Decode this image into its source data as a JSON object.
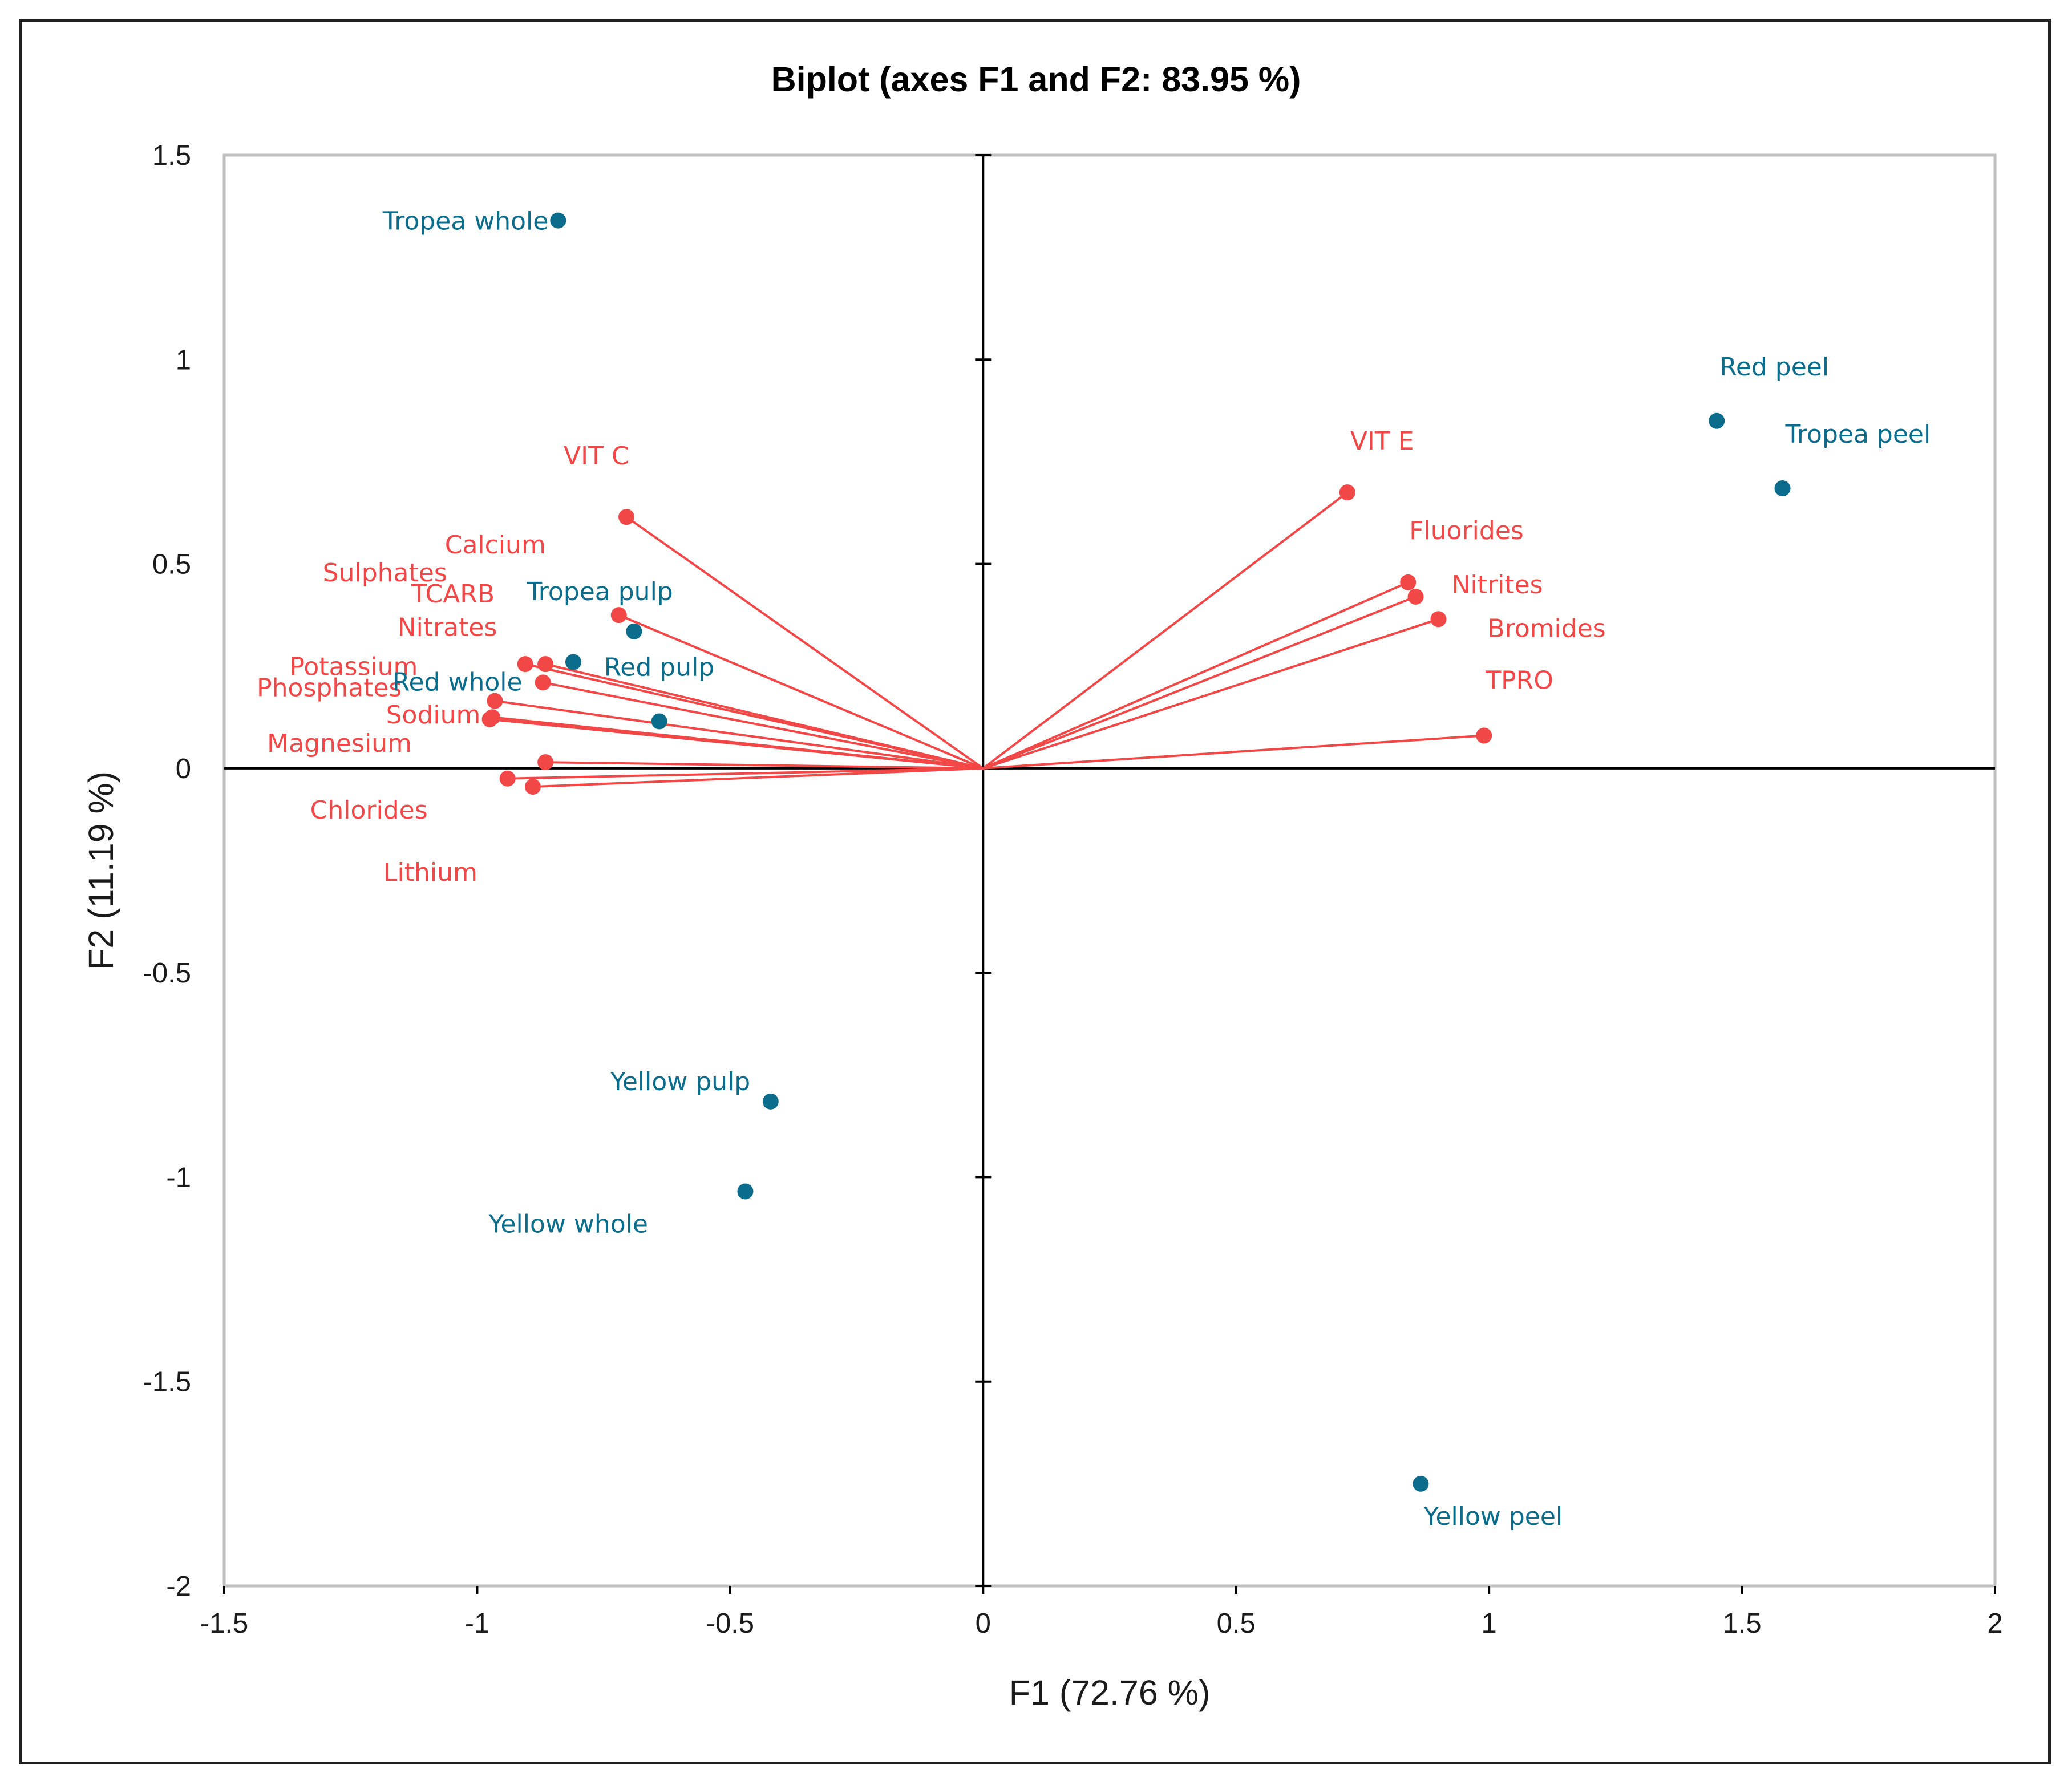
{
  "chart_data": {
    "type": "scatter",
    "title": "Biplot (axes F1 and F2: 83.95 %)",
    "xlabel": "F1 (72.76 %)",
    "ylabel": "F2 (11.19 %)",
    "xlim": [
      -1.5,
      2
    ],
    "ylim": [
      -2,
      1.5
    ],
    "xticks": [
      "-1.5",
      "-1",
      "-0.5",
      "0",
      "0.5",
      "1",
      "1.5",
      "2"
    ],
    "yticks": [
      "-2",
      "-1.5",
      "-1",
      "-0.5",
      "0",
      "0.5",
      "1",
      "1.5"
    ],
    "colors": {
      "variables": "#f24747",
      "observations": "#0b6c8c"
    },
    "variables": [
      {
        "name": "VIT C",
        "x": -0.705,
        "y": 0.615
      },
      {
        "name": "Calcium",
        "x": -0.72,
        "y": 0.375
      },
      {
        "name": "Sulphates",
        "x": -0.905,
        "y": 0.255
      },
      {
        "name": "TCARB",
        "x": -0.865,
        "y": 0.255
      },
      {
        "name": "Nitrates",
        "x": -0.87,
        "y": 0.21
      },
      {
        "name": "Potassium",
        "x": -0.965,
        "y": 0.165
      },
      {
        "name": "Phosphates",
        "x": -0.97,
        "y": 0.125
      },
      {
        "name": "Sodium",
        "x": -0.975,
        "y": 0.12
      },
      {
        "name": "Magnesium",
        "x": -0.865,
        "y": 0.015
      },
      {
        "name": "Chlorides",
        "x": -0.94,
        "y": -0.025
      },
      {
        "name": "Lithium",
        "x": -0.89,
        "y": -0.045
      },
      {
        "name": "VIT E",
        "x": 0.72,
        "y": 0.675
      },
      {
        "name": "Fluorides",
        "x": 0.84,
        "y": 0.455
      },
      {
        "name": "Nitrites",
        "x": 0.855,
        "y": 0.42
      },
      {
        "name": "Bromides",
        "x": 0.9,
        "y": 0.365
      },
      {
        "name": "TPRO",
        "x": 0.99,
        "y": 0.08
      }
    ],
    "observations": [
      {
        "name": "Tropea whole",
        "x": -0.84,
        "y": 1.34
      },
      {
        "name": "Tropea pulp",
        "x": -0.69,
        "y": 0.335
      },
      {
        "name": "Red pulp",
        "x": -0.64,
        "y": 0.115
      },
      {
        "name": "Red whole",
        "x": -0.81,
        "y": 0.26
      },
      {
        "name": "Red peel",
        "x": 1.45,
        "y": 0.85
      },
      {
        "name": "Tropea peel",
        "x": 1.58,
        "y": 0.685
      },
      {
        "name": "Yellow pulp",
        "x": -0.42,
        "y": -0.815
      },
      {
        "name": "Yellow whole",
        "x": -0.47,
        "y": -1.035
      },
      {
        "name": "Yellow peel",
        "x": 0.865,
        "y": -1.75
      }
    ]
  }
}
